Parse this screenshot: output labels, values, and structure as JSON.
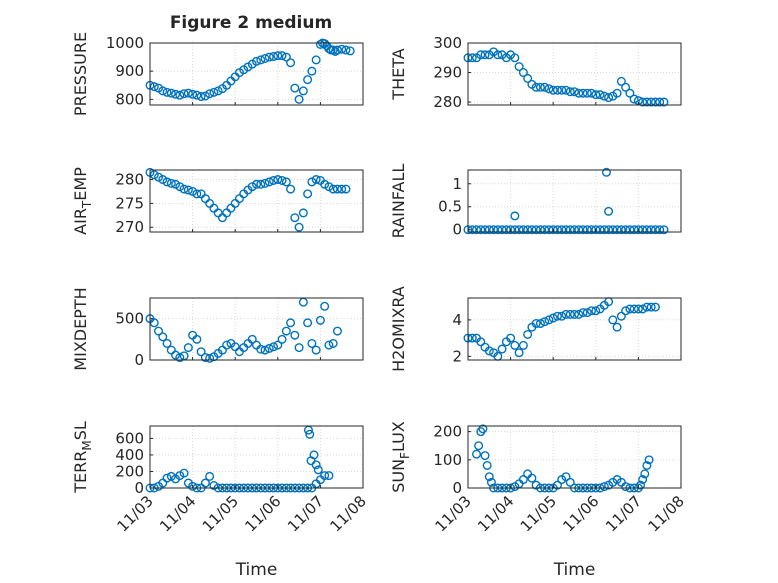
{
  "figure_title": "Figure 2 medium",
  "marker_color": "#0072BD",
  "chart_data": [
    {
      "type": "scatter",
      "title": "Figure 2 medium",
      "ylabel": "PRESSURE",
      "ylim": [
        780,
        1000
      ],
      "yticks": [
        800,
        900,
        1000
      ],
      "xlim": [
        0,
        5
      ],
      "xticks": [
        0,
        1,
        2,
        3,
        4,
        5
      ],
      "xticklabels": [
        "",
        "",
        "",
        "",
        "",
        ""
      ],
      "grid": true,
      "x": [
        0.0,
        0.1,
        0.2,
        0.3,
        0.4,
        0.5,
        0.6,
        0.7,
        0.8,
        0.9,
        1.0,
        1.1,
        1.2,
        1.3,
        1.4,
        1.5,
        1.6,
        1.7,
        1.8,
        1.9,
        2.0,
        2.1,
        2.2,
        2.3,
        2.4,
        2.5,
        2.6,
        2.7,
        2.8,
        2.9,
        3.0,
        3.1,
        3.2,
        3.3,
        3.4,
        3.5,
        3.6,
        3.7,
        3.8,
        3.9,
        4.0,
        4.05,
        4.1,
        4.15,
        4.2,
        4.25,
        4.3,
        4.35,
        4.4,
        4.5,
        4.6,
        4.7
      ],
      "y": [
        850,
        845,
        840,
        830,
        825,
        822,
        818,
        815,
        820,
        822,
        818,
        815,
        810,
        812,
        820,
        825,
        830,
        838,
        850,
        865,
        880,
        895,
        905,
        915,
        925,
        935,
        940,
        945,
        950,
        952,
        955,
        955,
        950,
        930,
        840,
        800,
        830,
        870,
        900,
        940,
        995,
        1000,
        998,
        990,
        980,
        975,
        975,
        970,
        975,
        978,
        975,
        972
      ]
    },
    {
      "type": "scatter",
      "ylabel": "THETA",
      "ylim": [
        279,
        300
      ],
      "yticks": [
        280,
        290,
        300
      ],
      "xlim": [
        0,
        5
      ],
      "xticks": [
        0,
        1,
        2,
        3,
        4,
        5
      ],
      "xticklabels": [
        "",
        "",
        "",
        "",
        "",
        ""
      ],
      "grid": true,
      "x": [
        0.0,
        0.1,
        0.2,
        0.3,
        0.4,
        0.5,
        0.6,
        0.7,
        0.8,
        0.9,
        1.0,
        1.1,
        1.2,
        1.3,
        1.4,
        1.5,
        1.6,
        1.7,
        1.8,
        1.9,
        2.0,
        2.1,
        2.2,
        2.3,
        2.4,
        2.5,
        2.6,
        2.7,
        2.8,
        2.9,
        3.0,
        3.1,
        3.2,
        3.3,
        3.4,
        3.5,
        3.6,
        3.7,
        3.8,
        3.9,
        4.0,
        4.1,
        4.2,
        4.3,
        4.4,
        4.5,
        4.6
      ],
      "y": [
        295,
        295,
        295,
        296,
        296,
        296,
        297,
        296,
        296,
        295,
        296,
        295,
        292,
        290,
        288,
        286,
        285,
        285,
        285,
        284.5,
        284,
        284,
        284,
        284,
        283.5,
        283.5,
        283,
        283,
        283,
        283,
        282.5,
        282.5,
        282,
        281.5,
        282,
        283,
        287,
        285,
        283,
        281,
        280.5,
        280,
        280,
        280,
        280,
        280,
        280
      ]
    },
    {
      "type": "scatter",
      "ylabel": "AIR_TEMP",
      "ylim": [
        269,
        282
      ],
      "yticks": [
        270,
        275,
        280
      ],
      "xlim": [
        0,
        5
      ],
      "xticks": [
        0,
        1,
        2,
        3,
        4,
        5
      ],
      "xticklabels": [
        "",
        "",
        "",
        "",
        "",
        ""
      ],
      "grid": true,
      "x": [
        0.0,
        0.1,
        0.2,
        0.3,
        0.4,
        0.5,
        0.6,
        0.7,
        0.8,
        0.9,
        1.0,
        1.1,
        1.2,
        1.3,
        1.4,
        1.5,
        1.6,
        1.7,
        1.8,
        1.9,
        2.0,
        2.1,
        2.2,
        2.3,
        2.4,
        2.5,
        2.6,
        2.7,
        2.8,
        2.9,
        3.0,
        3.1,
        3.2,
        3.3,
        3.4,
        3.5,
        3.6,
        3.7,
        3.8,
        3.9,
        4.0,
        4.1,
        4.2,
        4.3,
        4.4,
        4.5,
        4.6
      ],
      "y": [
        281.5,
        281,
        280.5,
        280,
        279.5,
        279.2,
        279,
        278.5,
        278,
        277.8,
        277.5,
        277,
        277,
        276,
        275,
        274,
        273,
        272,
        273,
        274,
        275,
        276,
        277,
        277.8,
        278.5,
        279,
        279,
        279.2,
        279.5,
        279.8,
        280,
        279.8,
        279.5,
        278,
        272,
        270,
        273,
        277,
        279.5,
        280,
        279.8,
        279,
        278.5,
        278,
        278,
        278,
        278
      ]
    },
    {
      "type": "scatter",
      "ylabel": "RAINFALL",
      "ylim": [
        -0.05,
        1.3
      ],
      "yticks": [
        0,
        0.5,
        1
      ],
      "xlim": [
        0,
        5
      ],
      "xticks": [
        0,
        1,
        2,
        3,
        4,
        5
      ],
      "xticklabels": [
        "",
        "",
        "",
        "",
        "",
        ""
      ],
      "grid": true,
      "x": [
        0.0,
        0.1,
        0.2,
        0.3,
        0.4,
        0.5,
        0.6,
        0.7,
        0.8,
        0.9,
        1.0,
        1.1,
        1.2,
        1.3,
        1.4,
        1.5,
        1.6,
        1.7,
        1.8,
        1.9,
        2.0,
        2.1,
        2.2,
        2.3,
        2.4,
        2.5,
        2.6,
        2.7,
        2.8,
        2.9,
        3.0,
        3.1,
        3.2,
        3.3,
        3.4,
        3.5,
        3.6,
        3.7,
        3.8,
        3.9,
        4.0,
        4.1,
        4.2,
        4.3,
        4.4,
        4.5,
        4.6,
        1.1,
        3.25,
        3.3
      ],
      "y": [
        0,
        0,
        0,
        0,
        0,
        0,
        0,
        0,
        0,
        0,
        0,
        0,
        0,
        0,
        0,
        0,
        0,
        0,
        0,
        0,
        0,
        0,
        0,
        0,
        0,
        0,
        0,
        0,
        0,
        0,
        0,
        0,
        0,
        0,
        0,
        0,
        0,
        0,
        0,
        0,
        0,
        0,
        0,
        0,
        0,
        0,
        0,
        0.3,
        1.25,
        0.4
      ]
    },
    {
      "type": "scatter",
      "ylabel": "MIXDEPTH",
      "ylim": [
        0,
        750
      ],
      "yticks": [
        0,
        500
      ],
      "xlim": [
        0,
        5
      ],
      "xticks": [
        0,
        1,
        2,
        3,
        4,
        5
      ],
      "xticklabels": [
        "",
        "",
        "",
        "",
        "",
        ""
      ],
      "grid": true,
      "x": [
        0.0,
        0.1,
        0.2,
        0.3,
        0.4,
        0.5,
        0.6,
        0.7,
        0.8,
        0.9,
        1.0,
        1.1,
        1.2,
        1.3,
        1.4,
        1.5,
        1.6,
        1.7,
        1.8,
        1.9,
        2.0,
        2.1,
        2.2,
        2.3,
        2.4,
        2.5,
        2.6,
        2.7,
        2.8,
        2.9,
        3.0,
        3.1,
        3.2,
        3.3,
        3.4,
        3.5,
        3.6,
        3.7,
        3.8,
        3.9,
        4.0,
        4.1,
        4.2,
        4.3,
        4.4
      ],
      "y": [
        500,
        450,
        350,
        280,
        200,
        120,
        60,
        30,
        50,
        150,
        300,
        250,
        100,
        30,
        20,
        40,
        80,
        120,
        180,
        200,
        160,
        100,
        150,
        200,
        250,
        180,
        130,
        120,
        140,
        160,
        180,
        250,
        350,
        450,
        300,
        150,
        700,
        450,
        200,
        120,
        480,
        650,
        180,
        200,
        350
      ]
    },
    {
      "type": "scatter",
      "ylabel": "H2OMIXRA",
      "ylim": [
        1.8,
        5.2
      ],
      "yticks": [
        2,
        4
      ],
      "xlim": [
        0,
        5
      ],
      "xticks": [
        0,
        1,
        2,
        3,
        4,
        5
      ],
      "xticklabels": [
        "",
        "",
        "",
        "",
        "",
        ""
      ],
      "grid": true,
      "x": [
        0.0,
        0.1,
        0.2,
        0.3,
        0.4,
        0.5,
        0.6,
        0.7,
        0.8,
        0.9,
        1.0,
        1.1,
        1.2,
        1.3,
        1.4,
        1.5,
        1.6,
        1.7,
        1.8,
        1.9,
        2.0,
        2.1,
        2.2,
        2.3,
        2.4,
        2.5,
        2.6,
        2.7,
        2.8,
        2.9,
        3.0,
        3.1,
        3.2,
        3.3,
        3.4,
        3.5,
        3.6,
        3.7,
        3.8,
        3.9,
        4.0,
        4.1,
        4.2,
        4.3,
        4.4
      ],
      "y": [
        3.0,
        3.0,
        3.0,
        2.8,
        2.5,
        2.3,
        2.2,
        2.0,
        2.4,
        2.8,
        3.0,
        2.6,
        2.2,
        2.6,
        3.2,
        3.6,
        3.8,
        3.8,
        3.9,
        4.0,
        4.1,
        4.2,
        4.2,
        4.3,
        4.3,
        4.3,
        4.3,
        4.4,
        4.4,
        4.5,
        4.5,
        4.6,
        4.8,
        5.0,
        4.0,
        3.6,
        4.2,
        4.5,
        4.6,
        4.6,
        4.6,
        4.6,
        4.7,
        4.7,
        4.7
      ]
    },
    {
      "type": "scatter",
      "ylabel": "TERR_MSL",
      "ylim": [
        0,
        750
      ],
      "yticks": [
        0,
        200,
        400,
        600
      ],
      "xlim": [
        0,
        5
      ],
      "xticks": [
        0,
        1,
        2,
        3,
        4,
        5
      ],
      "xticklabels": [
        "11/03",
        "11/04",
        "11/05",
        "11/06",
        "11/07",
        "11/08"
      ],
      "xlabel": "Time",
      "grid": true,
      "x": [
        0.0,
        0.1,
        0.2,
        0.3,
        0.4,
        0.5,
        0.6,
        0.7,
        0.8,
        0.9,
        1.0,
        1.1,
        1.2,
        1.3,
        1.4,
        1.5,
        1.6,
        1.7,
        1.8,
        1.9,
        2.0,
        2.1,
        2.2,
        2.3,
        2.4,
        2.5,
        2.6,
        2.7,
        2.8,
        2.9,
        3.0,
        3.1,
        3.2,
        3.3,
        3.4,
        3.5,
        3.6,
        3.7,
        3.8,
        3.9,
        4.0,
        4.1,
        4.2,
        3.72,
        3.75,
        3.78,
        3.85,
        3.9,
        3.95
      ],
      "y": [
        0,
        0,
        20,
        60,
        120,
        140,
        110,
        150,
        180,
        60,
        20,
        0,
        0,
        60,
        140,
        30,
        0,
        0,
        0,
        0,
        0,
        0,
        0,
        0,
        0,
        0,
        0,
        0,
        0,
        0,
        0,
        0,
        0,
        0,
        0,
        0,
        0,
        0,
        0,
        50,
        100,
        150,
        150,
        700,
        650,
        330,
        400,
        280,
        220
      ]
    },
    {
      "type": "scatter",
      "ylabel": "SUN_FLUX",
      "ylim": [
        0,
        220
      ],
      "yticks": [
        0,
        100,
        200
      ],
      "xlim": [
        0,
        5
      ],
      "xticks": [
        0,
        1,
        2,
        3,
        4,
        5
      ],
      "xticklabels": [
        "11/03",
        "11/04",
        "11/05",
        "11/06",
        "11/07",
        "11/08"
      ],
      "xlabel": "Time",
      "grid": true,
      "x": [
        0.2,
        0.25,
        0.3,
        0.35,
        0.4,
        0.45,
        0.5,
        0.55,
        0.6,
        0.7,
        0.8,
        0.9,
        1.0,
        1.1,
        1.2,
        1.3,
        1.4,
        1.5,
        1.6,
        1.7,
        1.8,
        1.9,
        2.0,
        2.1,
        2.2,
        2.3,
        2.4,
        2.5,
        2.6,
        2.7,
        2.8,
        2.9,
        3.0,
        3.1,
        3.2,
        3.3,
        3.4,
        3.5,
        3.6,
        3.7,
        3.8,
        3.9,
        4.0,
        4.05,
        4.1,
        4.15,
        4.2,
        4.25
      ],
      "y": [
        120,
        150,
        200,
        210,
        115,
        80,
        40,
        20,
        0,
        0,
        0,
        0,
        0,
        5,
        15,
        30,
        50,
        35,
        10,
        0,
        0,
        0,
        0,
        10,
        30,
        40,
        20,
        0,
        0,
        0,
        0,
        0,
        0,
        0,
        5,
        10,
        20,
        30,
        20,
        5,
        0,
        0,
        0,
        10,
        30,
        50,
        80,
        100
      ]
    }
  ]
}
